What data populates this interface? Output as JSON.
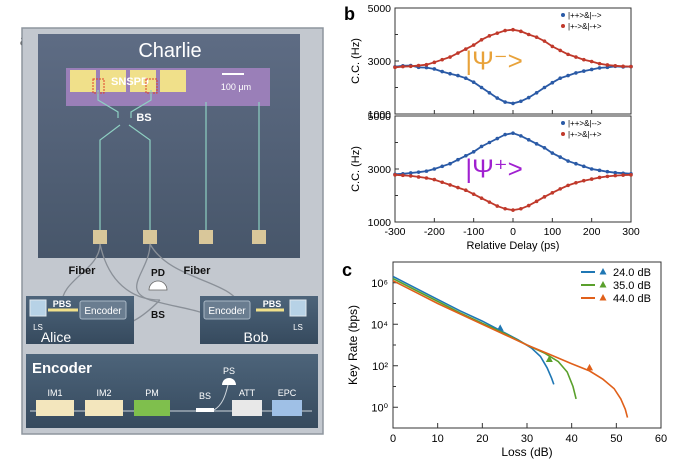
{
  "panel_labels": {
    "a": "a",
    "b": "b",
    "c": "c"
  },
  "diagram": {
    "chip_title": "Charlie",
    "snspd": "SNSPD",
    "scale_bar": "100 μm",
    "bs": "BS",
    "fiber_left": "Fiber",
    "fiber_right": "Fiber",
    "pd": "PD",
    "bs_bottom": "BS",
    "alice": {
      "name": "Alice",
      "encoder": "Encoder",
      "pbs": "PBS",
      "ls": "LS"
    },
    "bob": {
      "name": "Bob",
      "encoder": "Encoder",
      "pbs": "PBS",
      "ls": "LS"
    },
    "encoder_box": {
      "title": "Encoder",
      "ps": "PS",
      "components": [
        "IM1",
        "IM2",
        "PM",
        "BS",
        "ATT",
        "EPC"
      ],
      "colors": {
        "im": "#f3e6bd",
        "pm": "#7fbf4d",
        "att": "#e8e8e8",
        "epc": "#9fc0e6"
      }
    },
    "colors": {
      "frame": "#b8bec7",
      "chip": "#4e5c72",
      "box": "#3f556a",
      "snspd": "#f0e08a"
    }
  },
  "chart_data": [
    {
      "type": "scatter",
      "ylabel": "C.C. (Hz)",
      "state_label": "|Ψ⁻>",
      "state_color": "#e8a23a",
      "ylim": [
        1000,
        5000
      ],
      "yticks": [
        "1000",
        "3000",
        "5000"
      ],
      "legend": [
        "|++>&|-->",
        "|+->&|-+>"
      ],
      "series": [
        {
          "color": "#2a5aa6",
          "points": [
            [
              -300,
              2780
            ],
            [
              -280,
              2820
            ],
            [
              -260,
              2830
            ],
            [
              -240,
              2760
            ],
            [
              -220,
              2750
            ],
            [
              -200,
              2700
            ],
            [
              -180,
              2600
            ],
            [
              -160,
              2520
            ],
            [
              -140,
              2450
            ],
            [
              -120,
              2350
            ],
            [
              -100,
              2200
            ],
            [
              -80,
              2000
            ],
            [
              -60,
              1800
            ],
            [
              -40,
              1600
            ],
            [
              -20,
              1450
            ],
            [
              0,
              1400
            ],
            [
              20,
              1480
            ],
            [
              40,
              1620
            ],
            [
              60,
              1800
            ],
            [
              80,
              2000
            ],
            [
              100,
              2180
            ],
            [
              120,
              2350
            ],
            [
              140,
              2450
            ],
            [
              160,
              2550
            ],
            [
              180,
              2620
            ],
            [
              200,
              2680
            ],
            [
              220,
              2740
            ],
            [
              240,
              2760
            ],
            [
              260,
              2800
            ],
            [
              280,
              2780
            ],
            [
              300,
              2790
            ]
          ]
        },
        {
          "color": "#c0392b",
          "points": [
            [
              -300,
              2760
            ],
            [
              -280,
              2790
            ],
            [
              -260,
              2800
            ],
            [
              -240,
              2830
            ],
            [
              -220,
              2860
            ],
            [
              -200,
              2950
            ],
            [
              -180,
              3050
            ],
            [
              -160,
              3150
            ],
            [
              -140,
              3300
            ],
            [
              -120,
              3450
            ],
            [
              -100,
              3600
            ],
            [
              -80,
              3800
            ],
            [
              -60,
              3950
            ],
            [
              -40,
              4050
            ],
            [
              -20,
              4150
            ],
            [
              0,
              4180
            ],
            [
              20,
              4120
            ],
            [
              40,
              4000
            ],
            [
              60,
              3900
            ],
            [
              80,
              3750
            ],
            [
              100,
              3550
            ],
            [
              120,
              3400
            ],
            [
              140,
              3250
            ],
            [
              160,
              3150
            ],
            [
              180,
              3050
            ],
            [
              200,
              2980
            ],
            [
              220,
              2900
            ],
            [
              240,
              2850
            ],
            [
              260,
              2820
            ],
            [
              280,
              2800
            ],
            [
              300,
              2790
            ]
          ]
        }
      ]
    },
    {
      "type": "scatter",
      "ylabel": "C.C. (Hz)",
      "xlabel": "Relative Delay (ps)",
      "state_label": "|Ψ⁺>",
      "state_color": "#a020d0",
      "ylim": [
        1000,
        5000
      ],
      "xlim": [
        -300,
        300
      ],
      "xticks": [
        "-300",
        "-200",
        "-100",
        "0",
        "100",
        "200",
        "300"
      ],
      "yticks": [
        "1000",
        "3000",
        "5000"
      ],
      "legend": [
        "|++>&|-->",
        "|+->&|-+>"
      ],
      "series": [
        {
          "color": "#2a5aa6",
          "points": [
            [
              -300,
              2800
            ],
            [
              -280,
              2820
            ],
            [
              -260,
              2850
            ],
            [
              -240,
              2880
            ],
            [
              -220,
              2920
            ],
            [
              -200,
              3000
            ],
            [
              -180,
              3100
            ],
            [
              -160,
              3200
            ],
            [
              -140,
              3350
            ],
            [
              -120,
              3500
            ],
            [
              -100,
              3650
            ],
            [
              -80,
              3850
            ],
            [
              -60,
              4000
            ],
            [
              -40,
              4150
            ],
            [
              -20,
              4300
            ],
            [
              0,
              4350
            ],
            [
              20,
              4250
            ],
            [
              40,
              4100
            ],
            [
              60,
              3950
            ],
            [
              80,
              3800
            ],
            [
              100,
              3600
            ],
            [
              120,
              3450
            ],
            [
              140,
              3300
            ],
            [
              160,
              3200
            ],
            [
              180,
              3100
            ],
            [
              200,
              3000
            ],
            [
              220,
              2950
            ],
            [
              240,
              2900
            ],
            [
              260,
              2860
            ],
            [
              280,
              2840
            ],
            [
              300,
              2820
            ]
          ]
        },
        {
          "color": "#c0392b",
          "points": [
            [
              -300,
              2780
            ],
            [
              -280,
              2760
            ],
            [
              -260,
              2740
            ],
            [
              -240,
              2700
            ],
            [
              -220,
              2660
            ],
            [
              -200,
              2600
            ],
            [
              -180,
              2500
            ],
            [
              -160,
              2400
            ],
            [
              -140,
              2300
            ],
            [
              -120,
              2200
            ],
            [
              -100,
              2050
            ],
            [
              -80,
              1900
            ],
            [
              -60,
              1750
            ],
            [
              -40,
              1600
            ],
            [
              -20,
              1500
            ],
            [
              0,
              1450
            ],
            [
              20,
              1500
            ],
            [
              40,
              1620
            ],
            [
              60,
              1780
            ],
            [
              80,
              1950
            ],
            [
              100,
              2100
            ],
            [
              120,
              2250
            ],
            [
              140,
              2380
            ],
            [
              160,
              2480
            ],
            [
              180,
              2560
            ],
            [
              200,
              2620
            ],
            [
              220,
              2680
            ],
            [
              240,
              2720
            ],
            [
              260,
              2750
            ],
            [
              280,
              2770
            ],
            [
              300,
              2780
            ]
          ]
        }
      ]
    },
    {
      "type": "line",
      "xlabel": "Loss (dB)",
      "ylabel": "Key Rate (bps)",
      "xlim": [
        0,
        60
      ],
      "ylim_log10": [
        -1,
        7
      ],
      "xticks": [
        "0",
        "10",
        "20",
        "30",
        "40",
        "50",
        "60"
      ],
      "yticks": [
        "10⁰",
        "10²",
        "10⁴",
        "10⁶"
      ],
      "series": [
        {
          "name": "24.0 dB",
          "color": "#1f77b4",
          "marker": [
            24,
            3.8
          ],
          "points": [
            [
              0,
              6.3
            ],
            [
              5,
              5.75
            ],
            [
              10,
              5.2
            ],
            [
              15,
              4.65
            ],
            [
              20,
              4.15
            ],
            [
              24,
              3.7
            ],
            [
              28,
              3.25
            ],
            [
              31,
              2.85
            ],
            [
              33,
              2.45
            ],
            [
              34.5,
              1.9
            ],
            [
              35.5,
              1.4
            ],
            [
              36,
              1.1
            ]
          ]
        },
        {
          "name": "35.0 dB",
          "color": "#5aa02c",
          "marker": [
            35,
            2.3
          ],
          "points": [
            [
              0,
              6.2
            ],
            [
              5,
              5.65
            ],
            [
              10,
              5.1
            ],
            [
              15,
              4.55
            ],
            [
              20,
              4.05
            ],
            [
              25,
              3.55
            ],
            [
              30,
              3.0
            ],
            [
              34,
              2.6
            ],
            [
              37,
              2.2
            ],
            [
              39,
              1.7
            ],
            [
              40.3,
              1.0
            ],
            [
              41,
              0.4
            ]
          ]
        },
        {
          "name": "44.0 dB",
          "color": "#e0601a",
          "marker": [
            44,
            1.9
          ],
          "points": [
            [
              0,
              6.1
            ],
            [
              5,
              5.55
            ],
            [
              10,
              5.0
            ],
            [
              15,
              4.5
            ],
            [
              20,
              4.0
            ],
            [
              25,
              3.5
            ],
            [
              30,
              3.0
            ],
            [
              35,
              2.55
            ],
            [
              40,
              2.1
            ],
            [
              44,
              1.75
            ],
            [
              47,
              1.35
            ],
            [
              49.5,
              0.9
            ],
            [
              51,
              0.4
            ],
            [
              52,
              -0.1
            ],
            [
              52.5,
              -0.5
            ]
          ]
        }
      ]
    }
  ]
}
